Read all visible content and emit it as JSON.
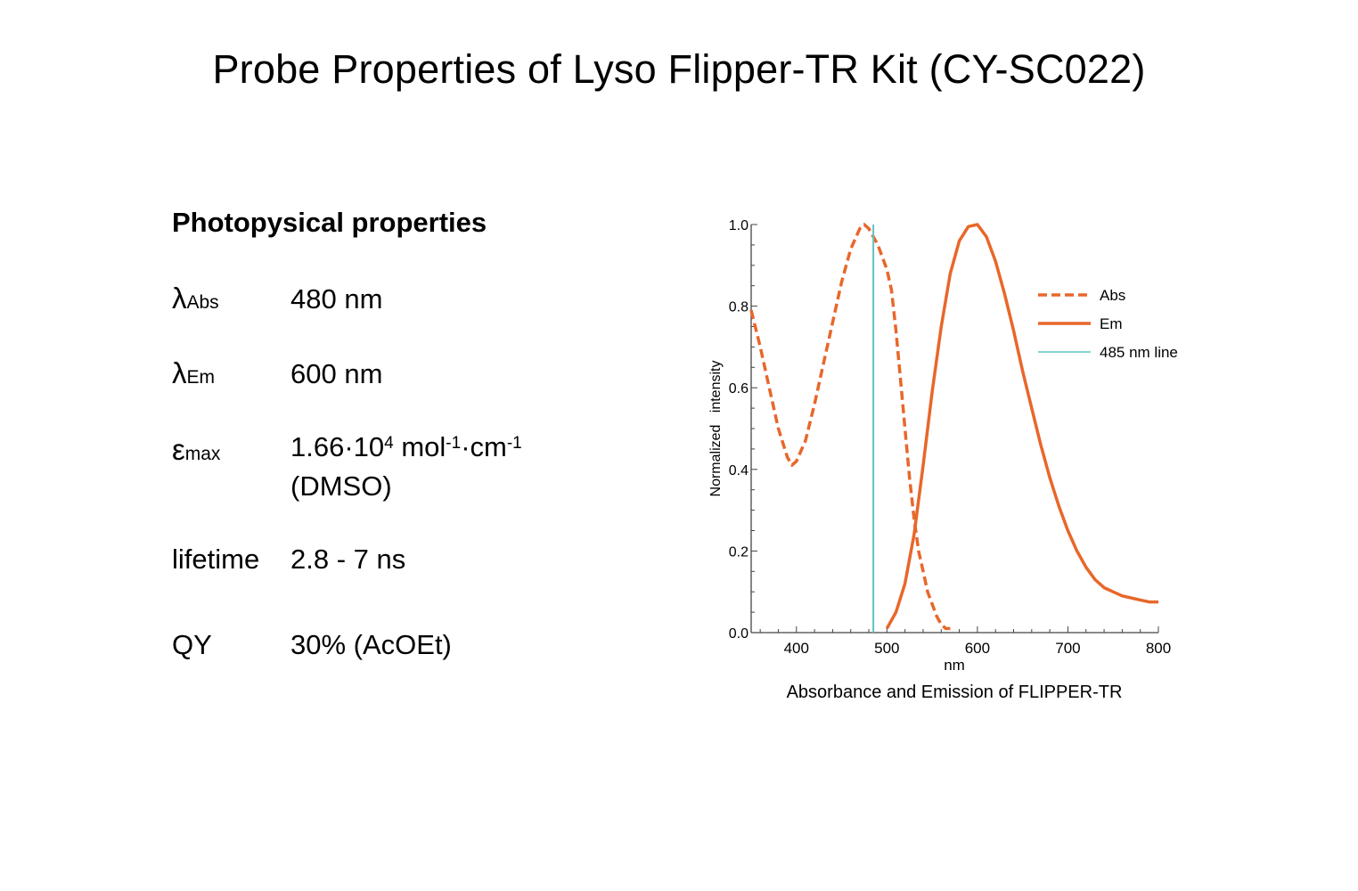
{
  "title": "Probe Properties of Lyso Flipper-TR Kit (CY-SC022)",
  "properties": {
    "heading": "Photopysical properties",
    "items": [
      {
        "symbol": "λ",
        "subscript": "Abs",
        "value": "480 nm"
      },
      {
        "symbol": "λ",
        "subscript": "Em",
        "value": "600 nm"
      },
      {
        "symbol": "ε",
        "subscript": "max",
        "value_parts": [
          "1.66·10",
          "4",
          " mol",
          "-1",
          "·cm",
          "-1"
        ],
        "value_line2": "(DMSO)"
      },
      {
        "label": "lifetime",
        "value": "2.8 - 7 ns"
      },
      {
        "label": "QY",
        "value": "30% (AcOEt)"
      }
    ]
  },
  "chart_data": {
    "type": "line",
    "title": "Absorbance and Emission of FLIPPER-TR",
    "xlabel": "nm",
    "ylabel": "Normalized   intensity",
    "xlim": [
      350,
      800
    ],
    "ylim": [
      0,
      1.0
    ],
    "xticks": [
      400,
      500,
      600,
      700,
      800
    ],
    "yticks": [
      0.0,
      0.2,
      0.4,
      0.6,
      0.8,
      1.0
    ],
    "ytick_labels": [
      "0.0",
      "0.2",
      "0.4",
      "0.6",
      "0.8",
      "1.0"
    ],
    "grid": false,
    "legend_position": "upper right",
    "colors": {
      "abs": "#e8672a",
      "em": "#e8672a",
      "line485": "#5fc4c0"
    },
    "series": [
      {
        "name": "Abs",
        "style": "dashed",
        "x": [
          350,
          360,
          370,
          380,
          390,
          395,
          400,
          410,
          420,
          430,
          440,
          450,
          460,
          470,
          475,
          480,
          485,
          490,
          500,
          505,
          510,
          515,
          520,
          525,
          530,
          535,
          540,
          545,
          550,
          555,
          560,
          565,
          570
        ],
        "y": [
          0.79,
          0.7,
          0.6,
          0.5,
          0.43,
          0.41,
          0.42,
          0.47,
          0.56,
          0.66,
          0.76,
          0.86,
          0.94,
          0.99,
          1.0,
          0.99,
          0.97,
          0.95,
          0.89,
          0.84,
          0.74,
          0.62,
          0.5,
          0.38,
          0.28,
          0.2,
          0.15,
          0.1,
          0.07,
          0.04,
          0.02,
          0.01,
          0.01
        ]
      },
      {
        "name": "Em",
        "style": "solid",
        "x": [
          500,
          510,
          520,
          530,
          540,
          550,
          560,
          570,
          580,
          590,
          600,
          610,
          620,
          630,
          640,
          650,
          660,
          670,
          680,
          690,
          700,
          710,
          720,
          730,
          740,
          750,
          760,
          770,
          780,
          790,
          800
        ],
        "y": [
          0.01,
          0.05,
          0.12,
          0.24,
          0.41,
          0.59,
          0.75,
          0.88,
          0.96,
          0.995,
          1.0,
          0.97,
          0.91,
          0.83,
          0.74,
          0.64,
          0.55,
          0.46,
          0.38,
          0.31,
          0.25,
          0.2,
          0.16,
          0.13,
          0.11,
          0.1,
          0.09,
          0.085,
          0.08,
          0.075,
          0.075
        ]
      },
      {
        "name": "485 nm line",
        "style": "vertical-line",
        "x": [
          485,
          485
        ],
        "y": [
          0.0,
          1.0
        ]
      }
    ],
    "legend": [
      "Abs",
      "Em",
      "485 nm line"
    ]
  }
}
